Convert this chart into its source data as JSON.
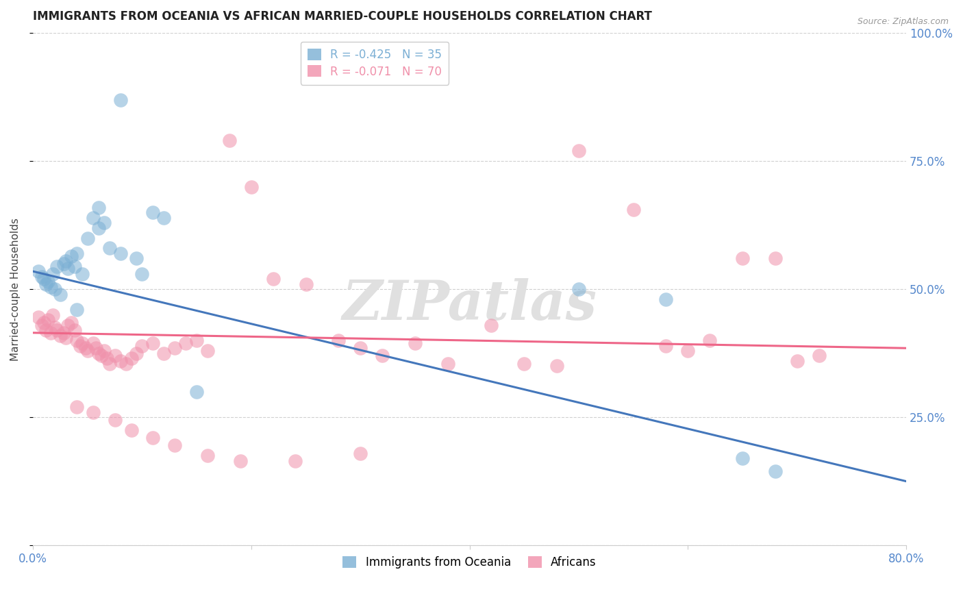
{
  "title": "IMMIGRANTS FROM OCEANIA VS AFRICAN MARRIED-COUPLE HOUSEHOLDS CORRELATION CHART",
  "source": "Source: ZipAtlas.com",
  "ylabel": "Married-couple Households",
  "ytick_labels": [
    "",
    "25.0%",
    "50.0%",
    "75.0%",
    "100.0%"
  ],
  "yticks": [
    0.0,
    0.25,
    0.5,
    0.75,
    1.0
  ],
  "xmin": 0.0,
  "xmax": 0.8,
  "ymin": 0.0,
  "ymax": 1.0,
  "legend_label_blue": "Immigrants from Oceania",
  "legend_label_pink": "Africans",
  "watermark": "ZIPatlas",
  "blue_scatter_x": [
    0.005,
    0.008,
    0.01,
    0.012,
    0.014,
    0.016,
    0.018,
    0.02,
    0.022,
    0.025,
    0.028,
    0.03,
    0.032,
    0.035,
    0.038,
    0.04,
    0.045,
    0.05,
    0.055,
    0.06,
    0.065,
    0.07,
    0.08,
    0.095,
    0.1,
    0.11,
    0.12,
    0.5,
    0.58,
    0.65,
    0.68,
    0.15,
    0.08,
    0.06,
    0.04
  ],
  "blue_scatter_y": [
    0.535,
    0.525,
    0.52,
    0.51,
    0.515,
    0.505,
    0.53,
    0.5,
    0.545,
    0.49,
    0.55,
    0.555,
    0.54,
    0.565,
    0.545,
    0.57,
    0.53,
    0.6,
    0.64,
    0.62,
    0.63,
    0.58,
    0.57,
    0.56,
    0.53,
    0.65,
    0.64,
    0.5,
    0.48,
    0.17,
    0.145,
    0.3,
    0.87,
    0.66,
    0.46
  ],
  "pink_scatter_x": [
    0.005,
    0.008,
    0.01,
    0.012,
    0.014,
    0.016,
    0.018,
    0.02,
    0.022,
    0.025,
    0.028,
    0.03,
    0.032,
    0.035,
    0.038,
    0.04,
    0.043,
    0.045,
    0.048,
    0.05,
    0.055,
    0.058,
    0.06,
    0.063,
    0.065,
    0.068,
    0.07,
    0.075,
    0.08,
    0.085,
    0.09,
    0.095,
    0.1,
    0.11,
    0.12,
    0.13,
    0.14,
    0.15,
    0.16,
    0.18,
    0.2,
    0.22,
    0.25,
    0.28,
    0.3,
    0.32,
    0.35,
    0.38,
    0.42,
    0.45,
    0.48,
    0.5,
    0.55,
    0.58,
    0.6,
    0.62,
    0.65,
    0.68,
    0.7,
    0.72,
    0.04,
    0.055,
    0.075,
    0.09,
    0.11,
    0.13,
    0.16,
    0.19,
    0.24,
    0.3
  ],
  "pink_scatter_y": [
    0.445,
    0.43,
    0.435,
    0.42,
    0.44,
    0.415,
    0.45,
    0.425,
    0.42,
    0.41,
    0.415,
    0.405,
    0.43,
    0.435,
    0.42,
    0.4,
    0.39,
    0.395,
    0.385,
    0.38,
    0.395,
    0.385,
    0.375,
    0.37,
    0.38,
    0.365,
    0.355,
    0.37,
    0.36,
    0.355,
    0.365,
    0.375,
    0.39,
    0.395,
    0.375,
    0.385,
    0.395,
    0.4,
    0.38,
    0.79,
    0.7,
    0.52,
    0.51,
    0.4,
    0.385,
    0.37,
    0.395,
    0.355,
    0.43,
    0.355,
    0.35,
    0.77,
    0.655,
    0.39,
    0.38,
    0.4,
    0.56,
    0.56,
    0.36,
    0.37,
    0.27,
    0.26,
    0.245,
    0.225,
    0.21,
    0.195,
    0.175,
    0.165,
    0.165,
    0.18
  ],
  "blue_line_y_start": 0.535,
  "blue_line_y_end": 0.125,
  "pink_line_y_start": 0.415,
  "pink_line_y_end": 0.385,
  "blue_color": "#7bafd4",
  "blue_line_color": "#4477bb",
  "pink_color": "#f090aa",
  "pink_line_color": "#ee6688",
  "title_color": "#222222",
  "axis_color": "#5588cc",
  "grid_color": "#d0d0d0",
  "background_color": "#ffffff",
  "watermark_color": "#e0e0e0",
  "r_blue": "-0.425",
  "n_blue": "35",
  "r_pink": "-0.071",
  "n_pink": "70"
}
